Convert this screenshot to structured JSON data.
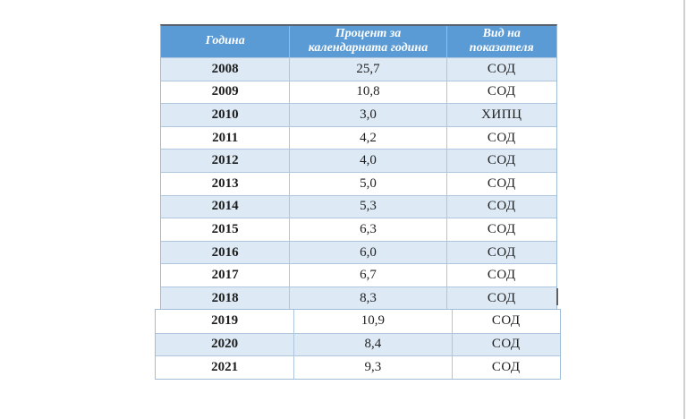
{
  "table": {
    "columns": [
      {
        "label": "Година"
      },
      {
        "label": "Процент за календарната година"
      },
      {
        "label": "Вид на показателя"
      }
    ],
    "rows": [
      {
        "year": "2008",
        "percent": "25,7",
        "type": "СОД"
      },
      {
        "year": "2009",
        "percent": "10,8",
        "type": "СОД"
      },
      {
        "year": "2010",
        "percent": "3,0",
        "type": "ХИПЦ"
      },
      {
        "year": "2011",
        "percent": "4,2",
        "type": "СОД"
      },
      {
        "year": "2012",
        "percent": "4,0",
        "type": "СОД"
      },
      {
        "year": "2013",
        "percent": "5,0",
        "type": "СОД"
      },
      {
        "year": "2014",
        "percent": "5,3",
        "type": "СОД"
      },
      {
        "year": "2015",
        "percent": "6,3",
        "type": "СОД"
      },
      {
        "year": "2016",
        "percent": "6,0",
        "type": "СОД"
      },
      {
        "year": "2017",
        "percent": "6,7",
        "type": "СОД"
      },
      {
        "year": "2018",
        "percent": "8,3",
        "type": "СОД"
      },
      {
        "year": "2019",
        "percent": "10,9",
        "type": "СОД"
      },
      {
        "year": "2020",
        "percent": "8,4",
        "type": "СОД"
      },
      {
        "year": "2021",
        "percent": "9,3",
        "type": "СОД"
      }
    ]
  },
  "colors": {
    "header_bg": "#5b9bd5",
    "header_text": "#ffffff",
    "band_bg": "#dde9f5",
    "row_bg": "#ffffff",
    "border": "#aec6de",
    "outer_border": "#9fbcd8",
    "top_border": "#5a6470",
    "text": "#1f1f1f",
    "edge_line": "#cfcfcf"
  }
}
